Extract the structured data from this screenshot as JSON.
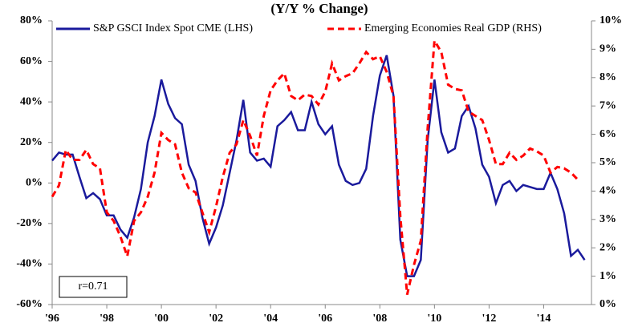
{
  "chart_data": {
    "type": "line",
    "subtitle": "(Y/Y % Change)",
    "annotation": "r=0.71",
    "legend": "top",
    "x": [
      1996,
      1996.25,
      1996.5,
      1996.75,
      1997,
      1997.25,
      1997.5,
      1997.75,
      1998,
      1998.25,
      1998.5,
      1998.75,
      1999,
      1999.25,
      1999.5,
      1999.75,
      2000,
      2000.25,
      2000.5,
      2000.75,
      2001,
      2001.25,
      2001.5,
      2001.75,
      2002,
      2002.25,
      2002.5,
      2002.75,
      2003,
      2003.25,
      2003.5,
      2003.75,
      2004,
      2004.25,
      2004.5,
      2004.75,
      2005,
      2005.25,
      2005.5,
      2005.75,
      2006,
      2006.25,
      2006.5,
      2006.75,
      2007,
      2007.25,
      2007.5,
      2007.75,
      2008,
      2008.25,
      2008.5,
      2008.75,
      2009,
      2009.25,
      2009.5,
      2009.75,
      2010,
      2010.25,
      2010.5,
      2010.75,
      2011,
      2011.25,
      2011.5,
      2011.75,
      2012,
      2012.25,
      2012.5,
      2012.75,
      2013,
      2013.25,
      2013.5,
      2013.75,
      2014,
      2014.25,
      2014.5,
      2014.75,
      2015,
      2015.25,
      2015.5
    ],
    "xlim": [
      1996,
      2015.75
    ],
    "xticks": [
      {
        "value": 1996,
        "label": "'96"
      },
      {
        "value": 1998,
        "label": "'98"
      },
      {
        "value": 2000,
        "label": "'00"
      },
      {
        "value": 2002,
        "label": "'02"
      },
      {
        "value": 2004,
        "label": "'04"
      },
      {
        "value": 2006,
        "label": "'06"
      },
      {
        "value": 2008,
        "label": "'08"
      },
      {
        "value": 2010,
        "label": "'10"
      },
      {
        "value": 2012,
        "label": "'12"
      },
      {
        "value": 2014,
        "label": "'14"
      }
    ],
    "ylim": [
      -60,
      80
    ],
    "yticks": [
      {
        "value": -60,
        "label": "-60%"
      },
      {
        "value": -40,
        "label": "-40%"
      },
      {
        "value": -20,
        "label": "-20%"
      },
      {
        "value": 0,
        "label": "0%"
      },
      {
        "value": 20,
        "label": "20%"
      },
      {
        "value": 40,
        "label": "40%"
      },
      {
        "value": 60,
        "label": "60%"
      },
      {
        "value": 80,
        "label": "80%"
      }
    ],
    "y2lim": [
      0,
      10
    ],
    "y2ticks": [
      {
        "value": 0,
        "label": "0%"
      },
      {
        "value": 1,
        "label": "1%"
      },
      {
        "value": 2,
        "label": "2%"
      },
      {
        "value": 3,
        "label": "3%"
      },
      {
        "value": 4,
        "label": "4%"
      },
      {
        "value": 5,
        "label": "5%"
      },
      {
        "value": 6,
        "label": "6%"
      },
      {
        "value": 7,
        "label": "7%"
      },
      {
        "value": 8,
        "label": "8%"
      },
      {
        "value": 9,
        "label": "9%"
      },
      {
        "value": 10,
        "label": "10%"
      }
    ],
    "series": [
      {
        "name": "S&P GSCI Index Spot CME (LHS)",
        "color": "#1a1a9c",
        "dashed": false,
        "values": [
          11,
          15,
          14,
          14,
          3,
          -7.5,
          -5,
          -8,
          -16,
          -16,
          -23,
          -27,
          -17,
          -3,
          20,
          33,
          51,
          39,
          32,
          29,
          9,
          1,
          -17,
          -30,
          -22,
          -11,
          5,
          21,
          41,
          15,
          11,
          12,
          8,
          28,
          31,
          35,
          26,
          26,
          40,
          29,
          24,
          28,
          9,
          1,
          -1,
          0,
          7,
          33,
          53,
          63,
          43,
          -28,
          -46,
          -46,
          -38,
          21,
          51,
          25,
          15,
          17,
          33,
          38,
          27,
          9,
          3,
          -10,
          -1,
          1,
          -4,
          -1,
          -2,
          -3,
          -3,
          5,
          -3,
          -15,
          -36,
          -33,
          -38
        ]
      },
      {
        "name": "Emerging Economies Real GDP (RHS)",
        "color": "#ff0000",
        "dashed": true,
        "axis": "y2",
        "values": [
          3.8,
          4.2,
          5.45,
          5.1,
          5.1,
          5.45,
          4.95,
          4.8,
          3.25,
          2.95,
          2.4,
          1.7,
          2.95,
          3.25,
          3.8,
          4.65,
          6.05,
          5.8,
          5.65,
          4.65,
          4.1,
          3.95,
          3.25,
          2.55,
          3.45,
          4.5,
          5.35,
          5.65,
          6.5,
          5.95,
          5.25,
          6.65,
          7.55,
          7.9,
          8.15,
          7.35,
          7.2,
          7.4,
          7.35,
          7.05,
          7.5,
          8.5,
          7.9,
          8.05,
          8.15,
          8.5,
          8.9,
          8.65,
          8.75,
          8.2,
          7.35,
          3.1,
          0.35,
          1.4,
          2.25,
          6.2,
          9.3,
          8.9,
          7.75,
          7.6,
          7.55,
          6.8,
          6.65,
          6.5,
          5.8,
          4.95,
          4.95,
          5.35,
          5.1,
          5.25,
          5.5,
          5.4,
          5.25,
          4.65,
          4.85,
          4.8,
          4.65,
          4.4,
          null
        ]
      }
    ]
  }
}
